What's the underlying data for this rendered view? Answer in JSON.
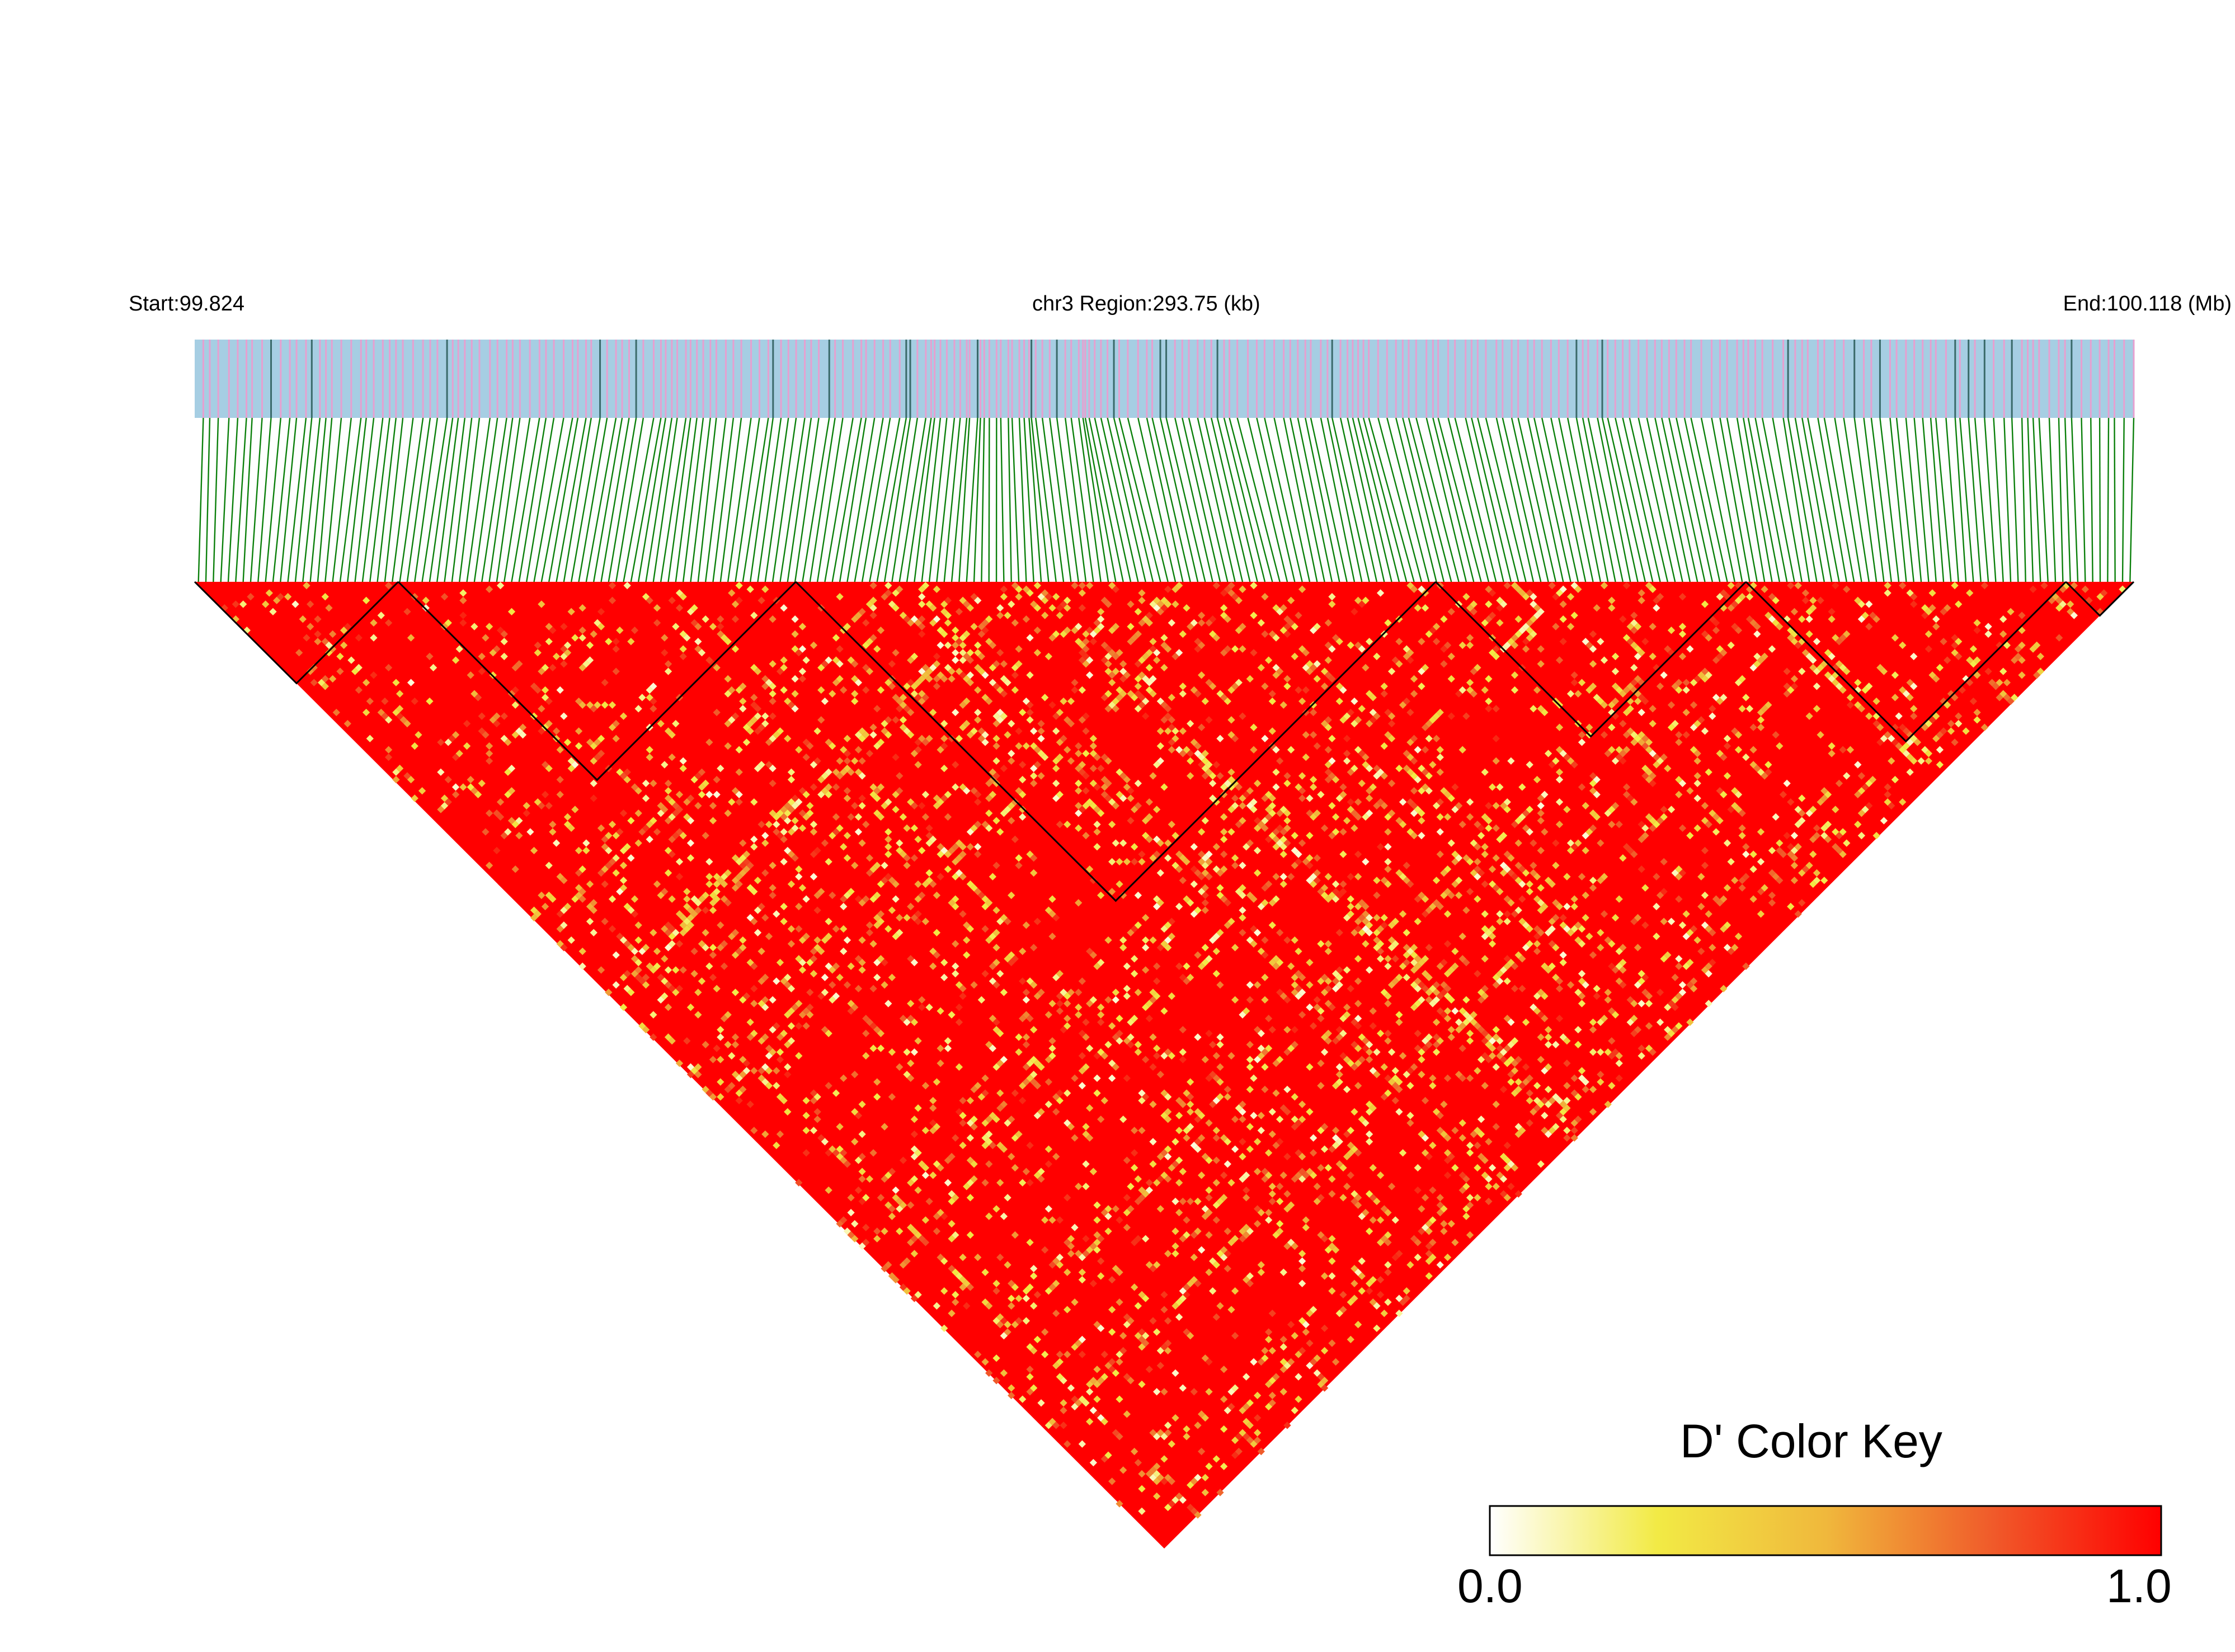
{
  "header": {
    "start": "Start:99.824",
    "region": "chr3 Region:293.75 (kb)",
    "end": "End:100.118 (Mb)"
  },
  "color_key": {
    "title": "D' Color Key",
    "min_label": "0.0",
    "max_label": "1.0",
    "stops": [
      "#ffffff",
      "#f2ea45",
      "#f0b83c",
      "#f05a2a",
      "#ff0000"
    ]
  },
  "colors": {
    "track_background": "#a6cee3",
    "track_snp_line": "#e6a0d0",
    "track_dark_line": "#3a6a6a",
    "connector_line": "#0b800b",
    "heatmap_high": "#ff0000",
    "block_outline": "#000000"
  },
  "chart_data": {
    "type": "heatmap",
    "title": "",
    "xlabel": "",
    "ylabel": "",
    "chromosome": "chr3",
    "region_start_mb": 99.824,
    "region_end_mb": 100.118,
    "region_length_kb": 293.75,
    "value_range": [
      0.0,
      1.0
    ],
    "snp_count_approx": 260,
    "ld_blocks": [
      {
        "start_snp_fraction": 0.0,
        "end_snp_fraction": 0.105
      },
      {
        "start_snp_fraction": 0.105,
        "end_snp_fraction": 0.31
      },
      {
        "start_snp_fraction": 0.31,
        "end_snp_fraction": 0.64
      },
      {
        "start_snp_fraction": 0.64,
        "end_snp_fraction": 0.8
      },
      {
        "start_snp_fraction": 0.8,
        "end_snp_fraction": 0.965
      },
      {
        "start_snp_fraction": 0.965,
        "end_snp_fraction": 1.0
      }
    ],
    "legend_placement": "bottom-right"
  }
}
